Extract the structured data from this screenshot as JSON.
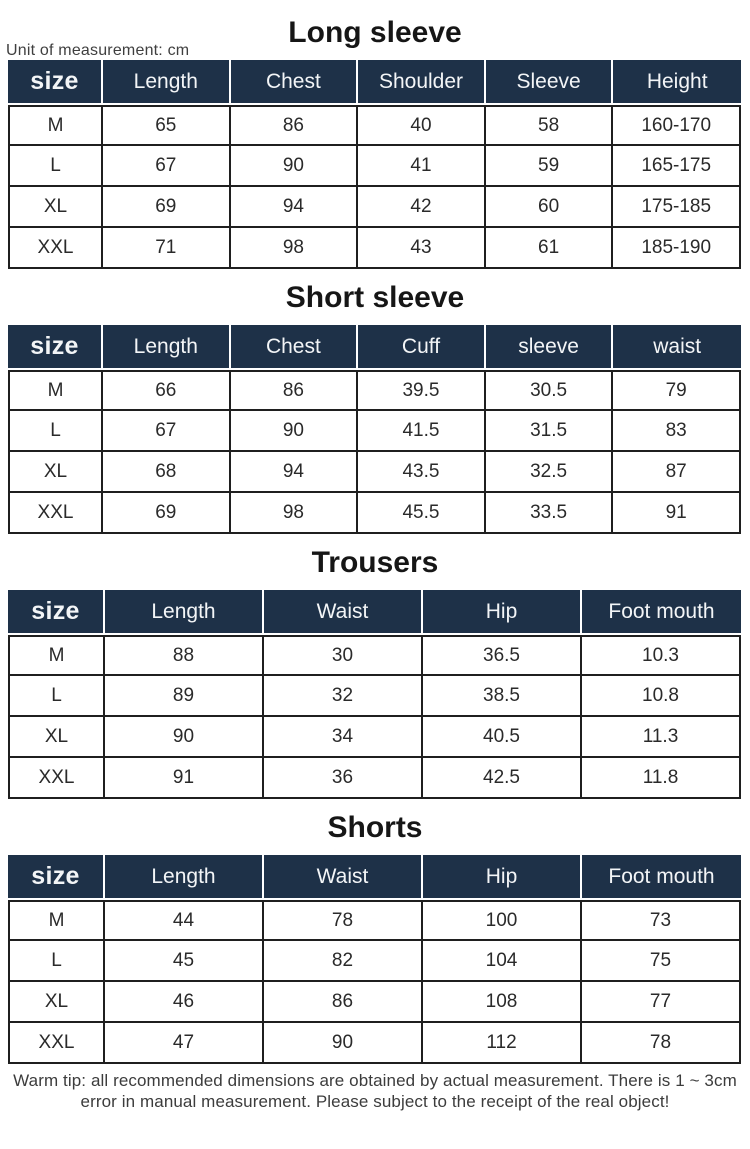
{
  "page": {
    "unit_note": "Unit of measurement: cm",
    "warm_tip": "Warm tip: all recommended dimensions are obtained by actual measurement. There is 1 ~ 3cm error in manual measurement. Please subject to the receipt of the real object!"
  },
  "colors": {
    "header_bg": "#1e3148",
    "header_text": "#f3f5f7",
    "body_border": "#1f1f1f",
    "title_text": "#161616",
    "note_text": "#3f3f3f"
  },
  "sections": [
    {
      "title": "Long sleeve",
      "table": {
        "columns": [
          "size",
          "Length",
          "Chest",
          "Shoulder",
          "Sleeve",
          "Height"
        ],
        "rows": [
          [
            "M",
            "65",
            "86",
            "40",
            "58",
            "160-170"
          ],
          [
            "L",
            "67",
            "90",
            "41",
            "59",
            "165-175"
          ],
          [
            "XL",
            "69",
            "94",
            "42",
            "60",
            "175-185"
          ],
          [
            "XXL",
            "71",
            "98",
            "43",
            "61",
            "185-190"
          ]
        ]
      }
    },
    {
      "title": "Short sleeve",
      "table": {
        "columns": [
          "size",
          "Length",
          "Chest",
          "Cuff",
          "sleeve",
          "waist"
        ],
        "rows": [
          [
            "M",
            "66",
            "86",
            "39.5",
            "30.5",
            "79"
          ],
          [
            "L",
            "67",
            "90",
            "41.5",
            "31.5",
            "83"
          ],
          [
            "XL",
            "68",
            "94",
            "43.5",
            "32.5",
            "87"
          ],
          [
            "XXL",
            "69",
            "98",
            "45.5",
            "33.5",
            "91"
          ]
        ]
      }
    },
    {
      "title": "Trousers",
      "table": {
        "columns": [
          "size",
          "Length",
          "Waist",
          "Hip",
          "Foot mouth"
        ],
        "rows": [
          [
            "M",
            "88",
            "30",
            "36.5",
            "10.3"
          ],
          [
            "L",
            "89",
            "32",
            "38.5",
            "10.8"
          ],
          [
            "XL",
            "90",
            "34",
            "40.5",
            "11.3"
          ],
          [
            "XXL",
            "91",
            "36",
            "42.5",
            "11.8"
          ]
        ]
      }
    },
    {
      "title": "Shorts",
      "table": {
        "columns": [
          "size",
          "Length",
          "Waist",
          "Hip",
          "Foot mouth"
        ],
        "rows": [
          [
            "M",
            "44",
            "78",
            "100",
            "73"
          ],
          [
            "L",
            "45",
            "82",
            "104",
            "75"
          ],
          [
            "XL",
            "46",
            "86",
            "108",
            "77"
          ],
          [
            "XXL",
            "47",
            "90",
            "112",
            "78"
          ]
        ]
      }
    }
  ]
}
